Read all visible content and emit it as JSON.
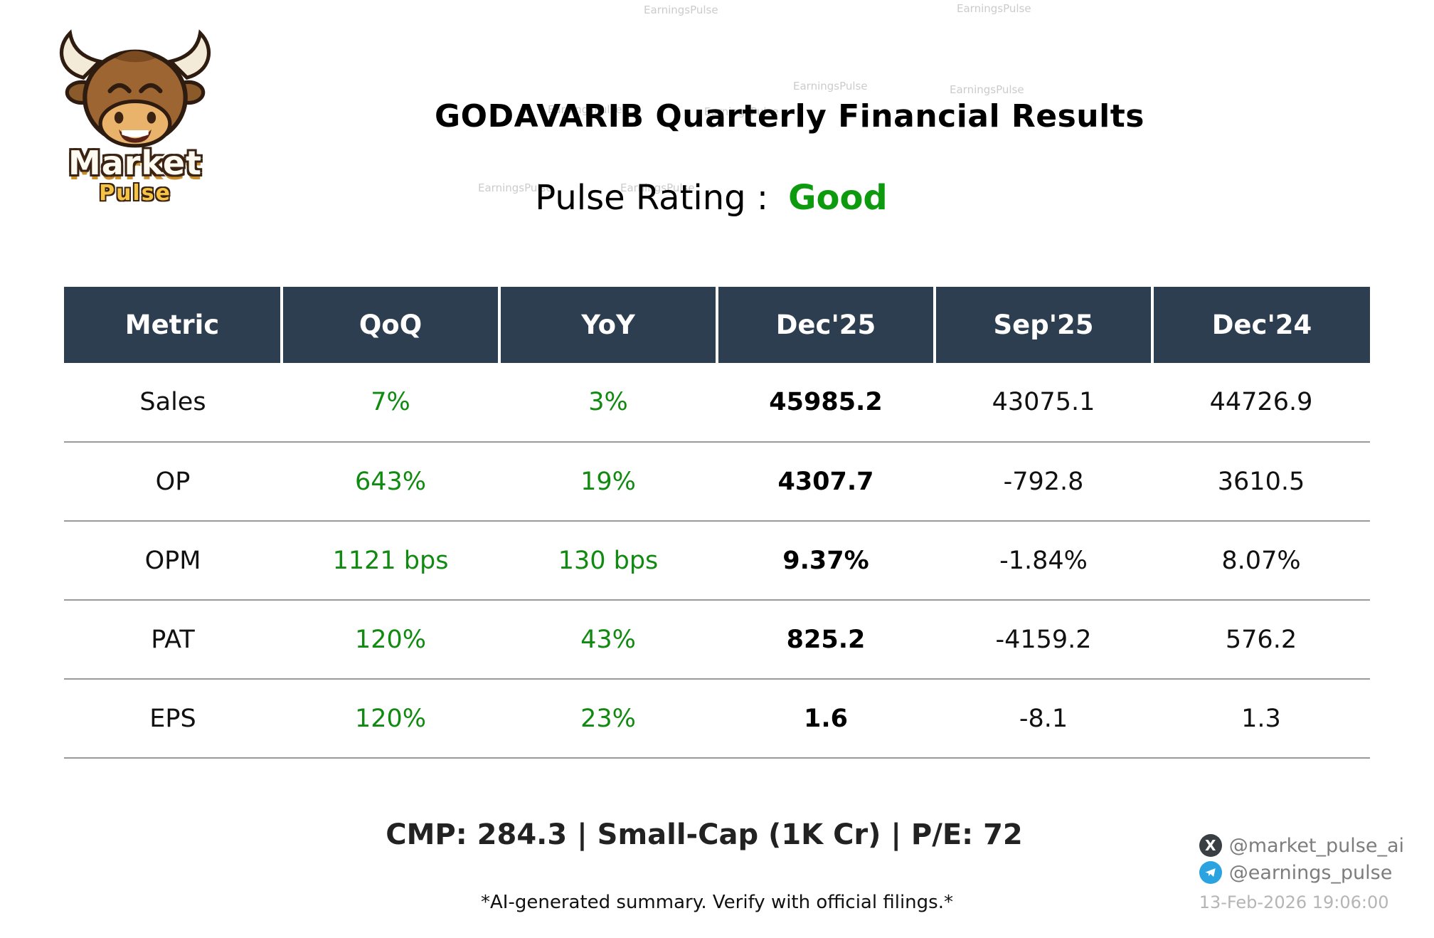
{
  "logo": {
    "brand_top": "Market",
    "brand_bottom": "Pulse"
  },
  "header": {
    "title": "GODAVARIB Quarterly Financial Results",
    "rating_label": "Pulse Rating :",
    "rating_value": "Good",
    "rating_color": "#0e9a0e"
  },
  "chart_data": {
    "type": "table",
    "columns": [
      "Metric",
      "QoQ",
      "YoY",
      "Dec'25",
      "Sep'25",
      "Dec'24"
    ],
    "rows": [
      [
        "Sales",
        "7%",
        "3%",
        "45985.2",
        "43075.1",
        "44726.9"
      ],
      [
        "OP",
        "643%",
        "19%",
        "4307.7",
        "-792.8",
        "3610.5"
      ],
      [
        "OPM",
        "1121 bps",
        "130 bps",
        "9.37%",
        "-1.84%",
        "8.07%"
      ],
      [
        "PAT",
        "120%",
        "43%",
        "825.2",
        "-4159.2",
        "576.2"
      ],
      [
        "EPS",
        "120%",
        "23%",
        "1.6",
        "-8.1",
        "1.3"
      ]
    ],
    "header_bg": "#2d3e50",
    "positive_color": "#118a11"
  },
  "footer": {
    "summary": "CMP: 284.3 | Small-Cap (1K Cr) | P/E: 72",
    "disclaimer": "*AI-generated summary. Verify with official filings.*",
    "social_x": "@market_pulse_ai",
    "social_telegram": "@earnings_pulse",
    "timestamp": "13-Feb-2026 19:06:00"
  },
  "watermark": {
    "text": "EarningsPulse"
  }
}
